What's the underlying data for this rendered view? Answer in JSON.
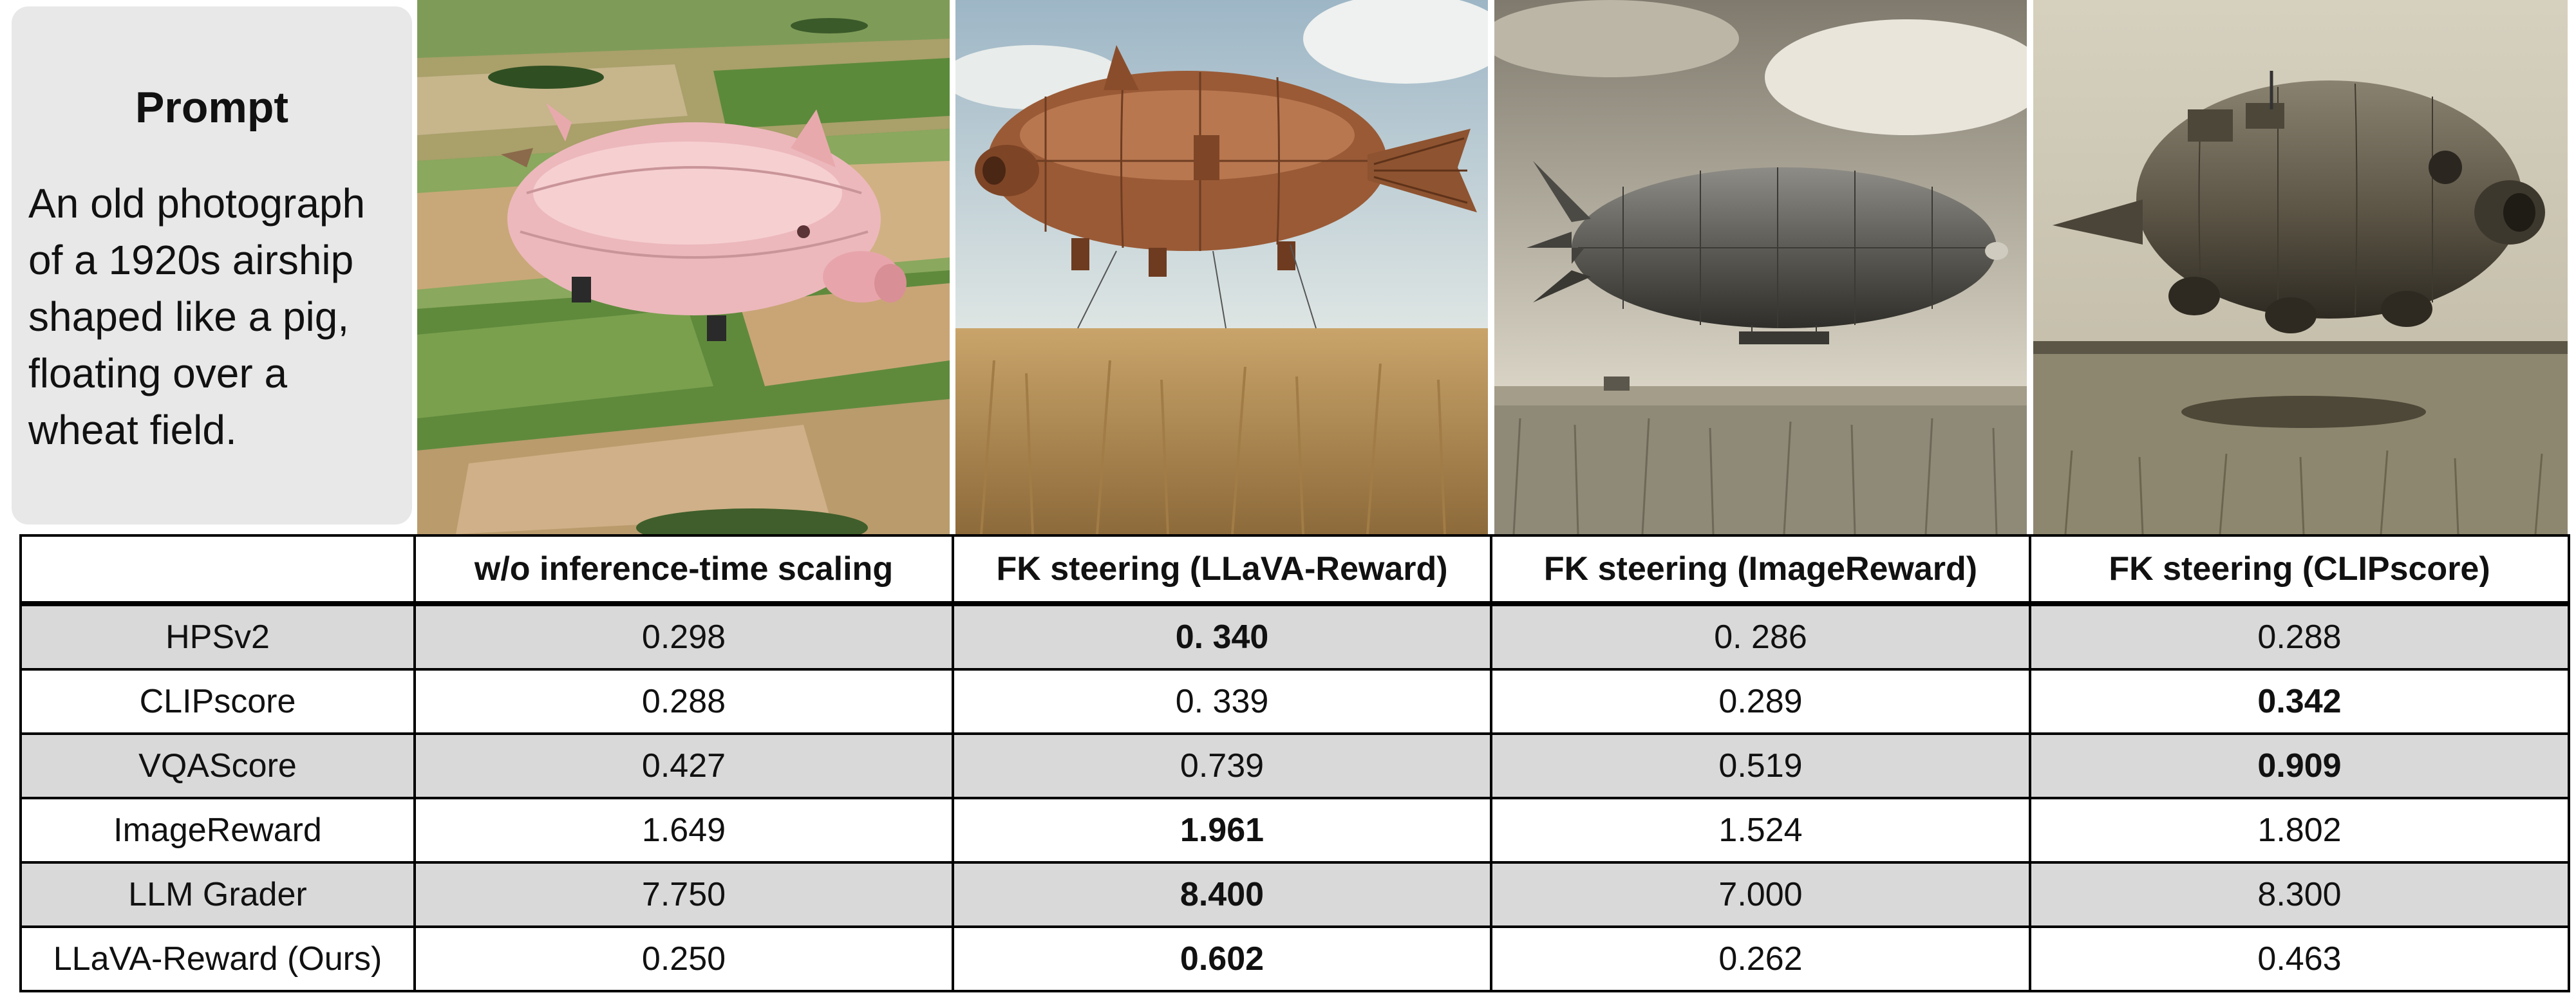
{
  "prompt": {
    "title": "Prompt",
    "text": "An old photograph\nof a 1920s airship\nshaped like a pig,\nfloating over a\nwheat field."
  },
  "panels": [
    {
      "name": "pink-pig-airship-over-farmland",
      "style": "color"
    },
    {
      "name": "copper-pig-airship-over-wheat",
      "style": "color"
    },
    {
      "name": "grey-zeppelin-over-wheat",
      "style": "sepia"
    },
    {
      "name": "pig-nosed-airship-over-field",
      "style": "sepia"
    }
  ],
  "table": {
    "columns": [
      "",
      "w/o inference-time scaling",
      "FK steering (LLaVA-Reward)",
      "FK steering (ImageReward)",
      "FK steering (CLIPscore)"
    ],
    "rows": [
      {
        "metric": "HPSv2",
        "values": [
          "0.298",
          "0. 340",
          "0. 286",
          "0.288"
        ],
        "bold": [
          false,
          true,
          false,
          false
        ],
        "shaded": true
      },
      {
        "metric": "CLIPscore",
        "values": [
          "0.288",
          "0. 339",
          "0.289",
          "0.342"
        ],
        "bold": [
          false,
          false,
          false,
          true
        ],
        "shaded": false
      },
      {
        "metric": "VQAScore",
        "values": [
          "0.427",
          "0.739",
          "0.519",
          "0.909"
        ],
        "bold": [
          false,
          false,
          false,
          true
        ],
        "shaded": true
      },
      {
        "metric": "ImageReward",
        "values": [
          "1.649",
          "1.961",
          "1.524",
          "1.802"
        ],
        "bold": [
          false,
          true,
          false,
          false
        ],
        "shaded": false
      },
      {
        "metric": "LLM Grader",
        "values": [
          "7.750",
          "8.400",
          "7.000",
          "8.300"
        ],
        "bold": [
          false,
          true,
          false,
          false
        ],
        "shaded": true
      },
      {
        "metric": "LLaVA-Reward (Ours)",
        "values": [
          "0.250",
          "0.602",
          "0.262",
          "0.463"
        ],
        "bold": [
          false,
          true,
          false,
          false
        ],
        "shaded": false
      }
    ]
  },
  "colors": {
    "shaded_row": "#d9d9d9",
    "prompt_card": "#e8e8e8",
    "border": "#000000"
  }
}
